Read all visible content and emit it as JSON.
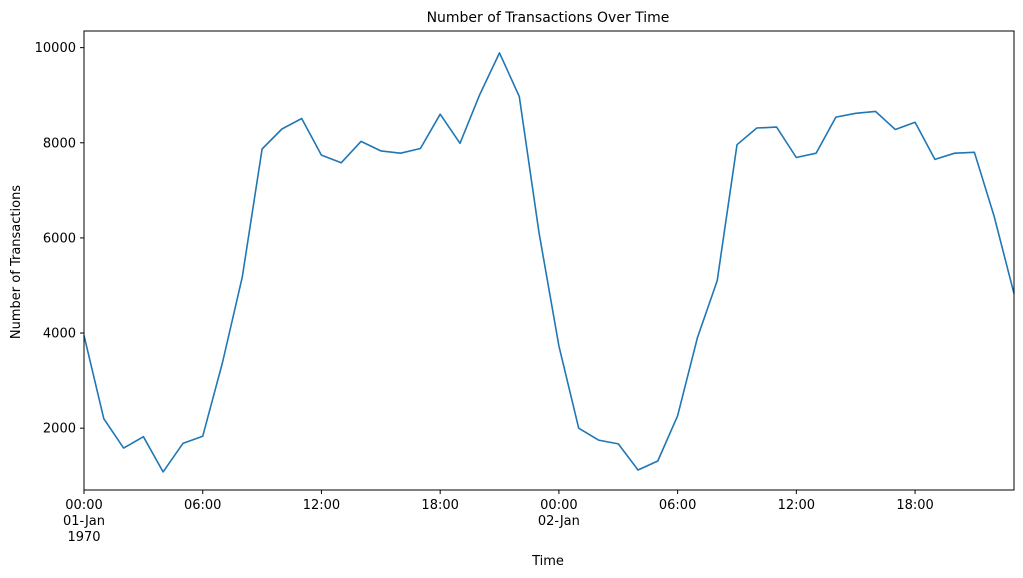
{
  "chart_data": {
    "type": "line",
    "title": "Number of Transactions Over Time",
    "xlabel": "Time",
    "ylabel": "Number of Transactions",
    "x_unit": "hour",
    "x_start": "1970-01-01 00:00",
    "xlim": [
      "1970-01-01 00:00",
      "1970-01-02 23:00"
    ],
    "ylim": [
      700,
      10350
    ],
    "y_ticks": [
      2000,
      4000,
      6000,
      8000,
      10000
    ],
    "y_tick_labels": [
      "2000",
      "4000",
      "6000",
      "8000",
      "10000"
    ],
    "x_ticks": [
      {
        "hour": 0,
        "lines": [
          "00:00",
          "01-Jan",
          "1970"
        ]
      },
      {
        "hour": 6,
        "lines": [
          "06:00"
        ]
      },
      {
        "hour": 12,
        "lines": [
          "12:00"
        ]
      },
      {
        "hour": 18,
        "lines": [
          "18:00"
        ]
      },
      {
        "hour": 24,
        "lines": [
          "00:00",
          "02-Jan"
        ]
      },
      {
        "hour": 30,
        "lines": [
          "06:00"
        ]
      },
      {
        "hour": 36,
        "lines": [
          "12:00"
        ]
      },
      {
        "hour": 42,
        "lines": [
          "18:00"
        ]
      }
    ],
    "grid": false,
    "series": [
      {
        "color": "#1f77b4",
        "x": [
          "1970-01-01 00:00",
          "1970-01-01 01:00",
          "1970-01-01 02:00",
          "1970-01-01 03:00",
          "1970-01-01 04:00",
          "1970-01-01 05:00",
          "1970-01-01 06:00",
          "1970-01-01 07:00",
          "1970-01-01 08:00",
          "1970-01-01 09:00",
          "1970-01-01 10:00",
          "1970-01-01 11:00",
          "1970-01-01 12:00",
          "1970-01-01 13:00",
          "1970-01-01 14:00",
          "1970-01-01 15:00",
          "1970-01-01 16:00",
          "1970-01-01 17:00",
          "1970-01-01 18:00",
          "1970-01-01 19:00",
          "1970-01-01 20:00",
          "1970-01-01 21:00",
          "1970-01-01 22:00",
          "1970-01-01 23:00",
          "1970-01-02 00:00",
          "1970-01-02 01:00",
          "1970-01-02 02:00",
          "1970-01-02 03:00",
          "1970-01-02 04:00",
          "1970-01-02 05:00",
          "1970-01-02 06:00",
          "1970-01-02 07:00",
          "1970-01-02 08:00",
          "1970-01-02 09:00",
          "1970-01-02 10:00",
          "1970-01-02 11:00",
          "1970-01-02 12:00",
          "1970-01-02 13:00",
          "1970-01-02 14:00",
          "1970-01-02 15:00",
          "1970-01-02 16:00",
          "1970-01-02 17:00",
          "1970-01-02 18:00",
          "1970-01-02 19:00",
          "1970-01-02 20:00",
          "1970-01-02 21:00",
          "1970-01-02 22:00",
          "1970-01-02 23:00"
        ],
        "values": [
          3950,
          2200,
          1580,
          1820,
          1080,
          1680,
          1830,
          3380,
          5180,
          7870,
          8290,
          8510,
          7740,
          7580,
          8030,
          7830,
          7780,
          7880,
          8600,
          7990,
          9010,
          9890,
          8970,
          6100,
          3730,
          2000,
          1750,
          1670,
          1120,
          1310,
          2260,
          3900,
          5100,
          7960,
          8310,
          8330,
          7690,
          7780,
          8540,
          8620,
          8660,
          8280,
          8430,
          7650,
          7780,
          7800,
          6450,
          4830
        ]
      }
    ]
  }
}
